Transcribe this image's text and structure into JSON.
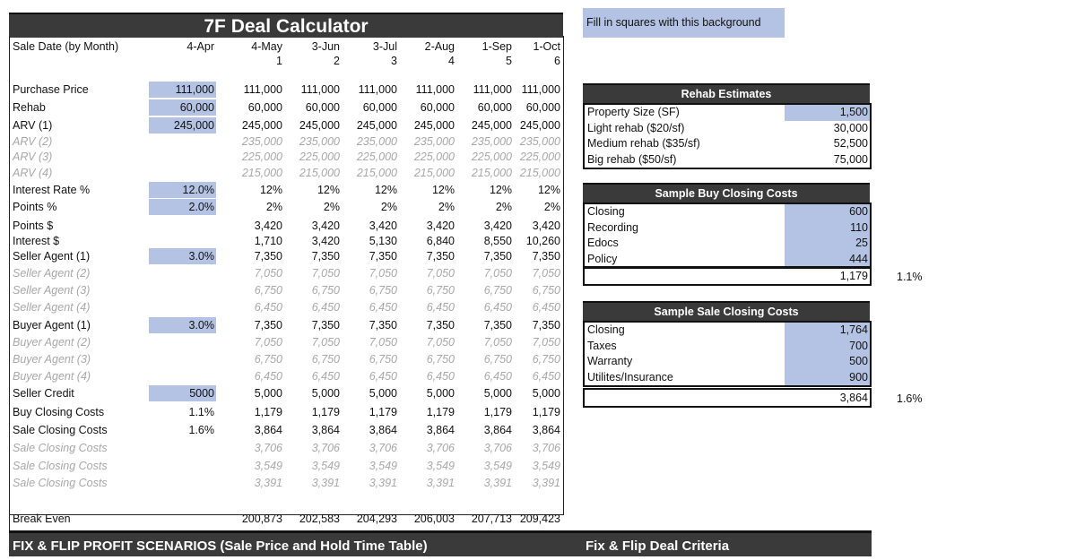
{
  "title": "7F Deal Calculator",
  "legend_note": "Fill in squares with this background",
  "input_color": "#b4c3e3",
  "header_color": "#3a3a3a",
  "main_table": {
    "header": {
      "label": "Sale Date (by Month)",
      "input": "4-Apr",
      "values": [
        "4-May",
        "3-Jun",
        "3-Jul",
        "2-Aug",
        "1-Sep",
        "1-Oct"
      ]
    },
    "month_numbers": [
      "1",
      "2",
      "3",
      "4",
      "5",
      "6"
    ],
    "rows": [
      {
        "label": "Purchase Price",
        "input": "111,000",
        "input_highlight": true,
        "ghost": false,
        "values": [
          "111,000",
          "111,000",
          "111,000",
          "111,000",
          "111,000",
          "111,000"
        ]
      },
      {
        "label": "Rehab",
        "input": "60,000",
        "input_highlight": true,
        "ghost": false,
        "values": [
          "60,000",
          "60,000",
          "60,000",
          "60,000",
          "60,000",
          "60,000"
        ]
      },
      {
        "label": "ARV (1)",
        "input": "245,000",
        "input_highlight": true,
        "ghost": false,
        "values": [
          "245,000",
          "245,000",
          "245,000",
          "245,000",
          "245,000",
          "245,000"
        ]
      },
      {
        "label": "ARV (2)",
        "input": "",
        "input_highlight": false,
        "ghost": true,
        "values": [
          "235,000",
          "235,000",
          "235,000",
          "235,000",
          "235,000",
          "235,000"
        ]
      },
      {
        "label": "ARV (3)",
        "input": "",
        "input_highlight": false,
        "ghost": true,
        "values": [
          "225,000",
          "225,000",
          "225,000",
          "225,000",
          "225,000",
          "225,000"
        ]
      },
      {
        "label": "ARV (4)",
        "input": "",
        "input_highlight": false,
        "ghost": true,
        "values": [
          "215,000",
          "215,000",
          "215,000",
          "215,000",
          "215,000",
          "215,000"
        ]
      },
      {
        "label": "Interest Rate %",
        "input": "12.0%",
        "input_highlight": true,
        "ghost": false,
        "values": [
          "12%",
          "12%",
          "12%",
          "12%",
          "12%",
          "12%"
        ]
      },
      {
        "label": "Points %",
        "input": "2.0%",
        "input_highlight": true,
        "ghost": false,
        "values": [
          "2%",
          "2%",
          "2%",
          "2%",
          "2%",
          "2%"
        ]
      },
      {
        "label": "Points $",
        "input": "",
        "input_highlight": false,
        "ghost": false,
        "values": [
          "3,420",
          "3,420",
          "3,420",
          "3,420",
          "3,420",
          "3,420"
        ]
      },
      {
        "label": "Interest $",
        "input": "",
        "input_highlight": false,
        "ghost": false,
        "values": [
          "1,710",
          "3,420",
          "5,130",
          "6,840",
          "8,550",
          "10,260"
        ]
      },
      {
        "label": "Seller Agent (1)",
        "input": "3.0%",
        "input_highlight": true,
        "ghost": false,
        "values": [
          "7,350",
          "7,350",
          "7,350",
          "7,350",
          "7,350",
          "7,350"
        ]
      },
      {
        "label": "Seller Agent (2)",
        "input": "",
        "input_highlight": false,
        "ghost": true,
        "values": [
          "7,050",
          "7,050",
          "7,050",
          "7,050",
          "7,050",
          "7,050"
        ]
      },
      {
        "label": "Seller Agent (3)",
        "input": "",
        "input_highlight": false,
        "ghost": true,
        "values": [
          "6,750",
          "6,750",
          "6,750",
          "6,750",
          "6,750",
          "6,750"
        ]
      },
      {
        "label": "Seller Agent (4)",
        "input": "",
        "input_highlight": false,
        "ghost": true,
        "values": [
          "6,450",
          "6,450",
          "6,450",
          "6,450",
          "6,450",
          "6,450"
        ]
      },
      {
        "label": "Buyer Agent (1)",
        "input": "3.0%",
        "input_highlight": true,
        "ghost": false,
        "values": [
          "7,350",
          "7,350",
          "7,350",
          "7,350",
          "7,350",
          "7,350"
        ]
      },
      {
        "label": "Buyer Agent (2)",
        "input": "",
        "input_highlight": false,
        "ghost": true,
        "values": [
          "7,050",
          "7,050",
          "7,050",
          "7,050",
          "7,050",
          "7,050"
        ]
      },
      {
        "label": "Buyer Agent (3)",
        "input": "",
        "input_highlight": false,
        "ghost": true,
        "values": [
          "6,750",
          "6,750",
          "6,750",
          "6,750",
          "6,750",
          "6,750"
        ]
      },
      {
        "label": "Buyer Agent (4)",
        "input": "",
        "input_highlight": false,
        "ghost": true,
        "values": [
          "6,450",
          "6,450",
          "6,450",
          "6,450",
          "6,450",
          "6,450"
        ]
      },
      {
        "label": "Seller Credit",
        "input": "5000",
        "input_highlight": true,
        "ghost": false,
        "values": [
          "5,000",
          "5,000",
          "5,000",
          "5,000",
          "5,000",
          "5,000"
        ]
      },
      {
        "label": "Buy Closing Costs",
        "input": "1.1%",
        "input_highlight": false,
        "ghost": false,
        "values": [
          "1,179",
          "1,179",
          "1,179",
          "1,179",
          "1,179",
          "1,179"
        ]
      },
      {
        "label": "Sale Closing Costs",
        "input": "1.6%",
        "input_highlight": false,
        "ghost": false,
        "values": [
          "3,864",
          "3,864",
          "3,864",
          "3,864",
          "3,864",
          "3,864"
        ]
      },
      {
        "label": "Sale Closing Costs",
        "input": "",
        "input_highlight": false,
        "ghost": true,
        "values": [
          "3,706",
          "3,706",
          "3,706",
          "3,706",
          "3,706",
          "3,706"
        ]
      },
      {
        "label": "Sale Closing Costs",
        "input": "",
        "input_highlight": false,
        "ghost": true,
        "values": [
          "3,549",
          "3,549",
          "3,549",
          "3,549",
          "3,549",
          "3,549"
        ]
      },
      {
        "label": "Sale Closing Costs",
        "input": "",
        "input_highlight": false,
        "ghost": true,
        "values": [
          "3,391",
          "3,391",
          "3,391",
          "3,391",
          "3,391",
          "3,391"
        ]
      },
      {
        "label": "Break Even",
        "input": "",
        "input_highlight": false,
        "ghost": false,
        "values": [
          "200,873",
          "202,583",
          "204,293",
          "206,003",
          "207,713",
          "209,423"
        ]
      }
    ]
  },
  "rehab_estimates": {
    "title": "Rehab Estimates",
    "rows": [
      {
        "label": "Property Size (SF)",
        "value": "1,500",
        "highlight": true
      },
      {
        "label": "Light rehab ($20/sf)",
        "value": "30,000",
        "highlight": false
      },
      {
        "label": "Medium rehab ($35/sf)",
        "value": "52,500",
        "highlight": false
      },
      {
        "label": "Big rehab ($50/sf)",
        "value": "75,000",
        "highlight": false
      }
    ]
  },
  "buy_closing": {
    "title": "Sample Buy Closing Costs",
    "rows": [
      {
        "label": "Closing",
        "value": "600",
        "highlight": true
      },
      {
        "label": "Recording",
        "value": "110",
        "highlight": true
      },
      {
        "label": "Edocs",
        "value": "25",
        "highlight": true
      },
      {
        "label": "Policy",
        "value": "444",
        "highlight": true
      }
    ],
    "total": "1,179",
    "percent": "1.1%"
  },
  "sale_closing": {
    "title": "Sample Sale Closing Costs",
    "rows": [
      {
        "label": "Closing",
        "value": "1,764",
        "highlight": true
      },
      {
        "label": "Taxes",
        "value": "700",
        "highlight": true
      },
      {
        "label": "Warranty",
        "value": "500",
        "highlight": true
      },
      {
        "label": "Utilites/Insurance",
        "value": "900",
        "highlight": true
      }
    ],
    "total": "3,864",
    "percent": "1.6%"
  },
  "bottom_banner": {
    "left": "FIX & FLIP PROFIT SCENARIOS (Sale Price and Hold Time Table)",
    "right": "Fix & Flip Deal Criteria"
  }
}
